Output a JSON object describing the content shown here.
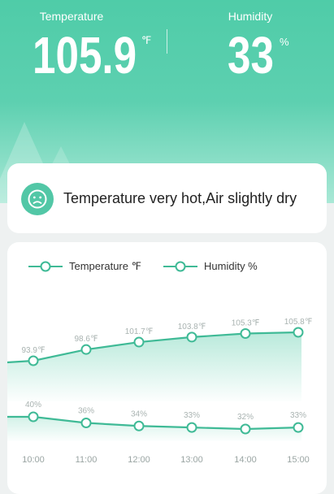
{
  "header": {
    "temperature": {
      "label": "Temperature",
      "value": "105.9",
      "unit": "℉"
    },
    "humidity": {
      "label": "Humidity",
      "value": "33",
      "unit": "%"
    }
  },
  "status": {
    "icon": "sad-face-icon",
    "text": "Temperature very hot,Air slightly dry"
  },
  "colors": {
    "accent": "#4fcca8",
    "line": "#3fba96",
    "card": "#ffffff"
  },
  "chart_data": {
    "type": "line",
    "categories": [
      "10:00",
      "11:00",
      "12:00",
      "13:00",
      "14:00",
      "15:00"
    ],
    "series": [
      {
        "name": "Temperature ℉",
        "values": [
          93.9,
          98.6,
          101.7,
          103.8,
          105.3,
          105.8
        ],
        "labels": [
          "93.9℉",
          "98.6℉",
          "101.7℉",
          "103.8℉",
          "105.3℉",
          "105.8℉"
        ]
      },
      {
        "name": "Humidity %",
        "values": [
          40,
          36,
          34,
          33,
          32,
          33
        ],
        "labels": [
          "40%",
          "36%",
          "34%",
          "33%",
          "32%",
          "33%"
        ]
      }
    ],
    "legend": "top-left"
  }
}
